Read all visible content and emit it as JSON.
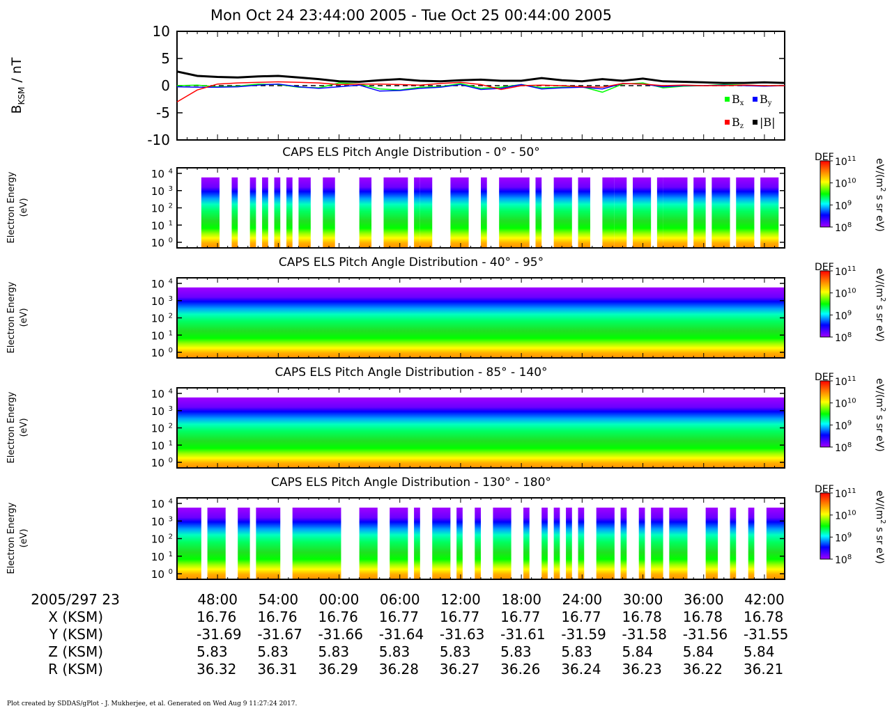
{
  "title": "Mon Oct 24 23:44:00 2005 - Tue Oct 25 00:44:00 2005",
  "footer": "Plot created by SDDAS/gPlot - J. Mukherjee, et al.  Generated on Wed Aug 9 11:27:24 2017.",
  "colors": {
    "bx": "#00ff00",
    "by": "#0000ff",
    "bz": "#ff0000",
    "bmag": "#000000",
    "colorbar_stops": [
      "#a000ff",
      "#0000ff",
      "#00ffff",
      "#00ff00",
      "#ffff00",
      "#ff8000",
      "#ff0000"
    ]
  },
  "colorbar": {
    "title": "DEF",
    "unit_main": "eV/(m",
    "unit_sup": "2",
    "unit_rest": " s sr eV)",
    "ticks": [
      {
        "base": "10",
        "exp": "11"
      },
      {
        "base": "10",
        "exp": "10"
      },
      {
        "base": "10",
        "exp": "9"
      },
      {
        "base": "10",
        "exp": "8"
      }
    ]
  },
  "chart_data": [
    {
      "type": "line",
      "ylabel_main": "B",
      "ylabel_sub": "KSM",
      "ylabel_rest": " / nT",
      "ylim": [
        -10,
        10
      ],
      "yticks": [
        "10",
        "5",
        "0",
        "-5",
        "-10"
      ],
      "legend": [
        {
          "key": "bx",
          "label": "B",
          "sub": "x"
        },
        {
          "key": "by",
          "label": "B",
          "sub": "y"
        },
        {
          "key": "bz",
          "label": "B",
          "sub": "z"
        },
        {
          "key": "bmag",
          "label": "|B|",
          "sub": ""
        }
      ],
      "legend_placement": "bottom-right",
      "x_minutes": [
        0,
        2,
        4,
        6,
        8,
        10,
        12,
        14,
        16,
        18,
        20,
        22,
        24,
        26,
        28,
        30,
        32,
        34,
        36,
        38,
        40,
        42,
        44,
        46,
        48,
        50,
        52,
        54,
        56,
        58,
        60
      ],
      "series": [
        {
          "key": "bx",
          "values": [
            0.0,
            0.1,
            -0.2,
            -0.1,
            0.3,
            0.2,
            -0.3,
            -0.4,
            0.5,
            0.3,
            -0.6,
            -0.8,
            -0.3,
            -0.2,
            0.4,
            -0.5,
            -0.3,
            0.2,
            -0.4,
            -0.3,
            -0.2,
            -1.2,
            0.3,
            0.5,
            -0.4,
            -0.1,
            0.0,
            0.2,
            0.1,
            0.0,
            0.0
          ]
        },
        {
          "key": "by",
          "values": [
            -0.2,
            -0.3,
            -0.3,
            -0.2,
            0.1,
            0.3,
            -0.2,
            -0.5,
            -0.2,
            0.1,
            -1.0,
            -0.9,
            -0.5,
            -0.3,
            0.2,
            -0.7,
            -0.5,
            0.2,
            -0.6,
            -0.4,
            -0.3,
            -0.6,
            0.4,
            0.3,
            -0.2,
            0.0,
            0.0,
            0.1,
            0.0,
            -0.1,
            0.0
          ]
        },
        {
          "key": "bz",
          "values": [
            -3.0,
            -0.8,
            0.3,
            0.5,
            0.6,
            0.7,
            0.6,
            0.5,
            0.2,
            0.3,
            0.3,
            0.2,
            0.1,
            0.4,
            0.6,
            0.2,
            -0.7,
            0.0,
            0.1,
            0.0,
            -0.2,
            -0.3,
            0.4,
            0.3,
            0.0,
            0.1,
            0.0,
            0.0,
            0.1,
            0.0,
            0.0
          ]
        },
        {
          "key": "bmag",
          "values": [
            2.6,
            1.8,
            1.6,
            1.5,
            1.7,
            1.8,
            1.5,
            1.2,
            0.8,
            0.7,
            1.0,
            1.2,
            0.9,
            0.8,
            1.0,
            1.1,
            0.9,
            0.9,
            1.4,
            1.0,
            0.8,
            1.2,
            0.9,
            1.3,
            0.8,
            0.7,
            0.6,
            0.5,
            0.5,
            0.6,
            0.5
          ]
        }
      ]
    },
    {
      "type": "heatmap",
      "title": "CAPS ELS Pitch Angle Distribution - 0° - 50°",
      "ylabel": "Electron Energy",
      "yunit": "(eV)",
      "yticks": [
        {
          "base": "10",
          "exp": "4"
        },
        {
          "base": "10",
          "exp": "3"
        },
        {
          "base": "10",
          "exp": "2"
        },
        {
          "base": "10",
          "exp": "1"
        },
        {
          "base": "10",
          "exp": "0"
        }
      ],
      "coverage": [
        [
          0.04,
          0.07
        ],
        [
          0.09,
          0.1
        ],
        [
          0.12,
          0.13
        ],
        [
          0.14,
          0.15
        ],
        [
          0.16,
          0.17
        ],
        [
          0.18,
          0.19
        ],
        [
          0.2,
          0.22
        ],
        [
          0.24,
          0.26
        ],
        [
          0.3,
          0.32
        ],
        [
          0.34,
          0.38
        ],
        [
          0.39,
          0.4
        ],
        [
          0.4,
          0.42
        ],
        [
          0.45,
          0.48
        ],
        [
          0.5,
          0.51
        ],
        [
          0.53,
          0.58
        ],
        [
          0.59,
          0.6
        ],
        [
          0.62,
          0.65
        ],
        [
          0.66,
          0.68
        ],
        [
          0.7,
          0.72
        ],
        [
          0.72,
          0.74
        ],
        [
          0.75,
          0.78
        ],
        [
          0.79,
          0.8
        ],
        [
          0.8,
          0.84
        ],
        [
          0.85,
          0.87
        ],
        [
          0.88,
          0.91
        ],
        [
          0.92,
          0.95
        ],
        [
          0.96,
          0.99
        ]
      ]
    },
    {
      "type": "heatmap",
      "title": "CAPS ELS Pitch Angle Distribution - 40° - 95°",
      "ylabel": "Electron Energy",
      "yunit": "(eV)",
      "yticks": [
        {
          "base": "10",
          "exp": "4"
        },
        {
          "base": "10",
          "exp": "3"
        },
        {
          "base": "10",
          "exp": "2"
        },
        {
          "base": "10",
          "exp": "1"
        },
        {
          "base": "10",
          "exp": "0"
        }
      ],
      "coverage": [
        [
          0.0,
          1.0
        ]
      ]
    },
    {
      "type": "heatmap",
      "title": "CAPS ELS Pitch Angle Distribution - 85° - 140°",
      "ylabel": "Electron Energy",
      "yunit": "(eV)",
      "yticks": [
        {
          "base": "10",
          "exp": "4"
        },
        {
          "base": "10",
          "exp": "3"
        },
        {
          "base": "10",
          "exp": "2"
        },
        {
          "base": "10",
          "exp": "1"
        },
        {
          "base": "10",
          "exp": "0"
        }
      ],
      "coverage": [
        [
          0.0,
          1.0
        ]
      ]
    },
    {
      "type": "heatmap",
      "title": "CAPS ELS Pitch Angle Distribution - 130° - 180°",
      "ylabel": "Electron Energy",
      "yunit": "(eV)",
      "yticks": [
        {
          "base": "10",
          "exp": "4"
        },
        {
          "base": "10",
          "exp": "3"
        },
        {
          "base": "10",
          "exp": "2"
        },
        {
          "base": "10",
          "exp": "1"
        },
        {
          "base": "10",
          "exp": "0"
        }
      ],
      "coverage": [
        [
          0.0,
          0.04
        ],
        [
          0.05,
          0.08
        ],
        [
          0.1,
          0.12
        ],
        [
          0.13,
          0.17
        ],
        [
          0.19,
          0.27
        ],
        [
          0.3,
          0.33
        ],
        [
          0.35,
          0.38
        ],
        [
          0.39,
          0.4
        ],
        [
          0.42,
          0.45
        ],
        [
          0.46,
          0.47
        ],
        [
          0.49,
          0.5
        ],
        [
          0.52,
          0.55
        ],
        [
          0.57,
          0.58
        ],
        [
          0.6,
          0.61
        ],
        [
          0.62,
          0.63
        ],
        [
          0.64,
          0.65
        ],
        [
          0.66,
          0.67
        ],
        [
          0.69,
          0.72
        ],
        [
          0.73,
          0.74
        ],
        [
          0.76,
          0.77
        ],
        [
          0.78,
          0.8
        ],
        [
          0.81,
          0.84
        ],
        [
          0.87,
          0.89
        ],
        [
          0.91,
          0.92
        ],
        [
          0.94,
          0.95
        ],
        [
          0.97,
          1.0
        ]
      ]
    }
  ],
  "time_axis": {
    "row_label": "2005/297 23",
    "ticks": [
      "48:00",
      "54:00",
      "00:00",
      "06:00",
      "12:00",
      "18:00",
      "24:00",
      "30:00",
      "36:00",
      "42:00"
    ],
    "tick_minutes": [
      4,
      10,
      16,
      22,
      28,
      34,
      40,
      46,
      52,
      58
    ],
    "span_minutes": 60
  },
  "ephemeris": [
    {
      "label": "X (KSM)",
      "values": [
        "16.76",
        "16.76",
        "16.76",
        "16.77",
        "16.77",
        "16.77",
        "16.77",
        "16.78",
        "16.78",
        "16.78"
      ]
    },
    {
      "label": "Y (KSM)",
      "values": [
        "-31.69",
        "-31.67",
        "-31.66",
        "-31.64",
        "-31.63",
        "-31.61",
        "-31.59",
        "-31.58",
        "-31.56",
        "-31.55"
      ]
    },
    {
      "label": "Z (KSM)",
      "values": [
        "5.83",
        "5.83",
        "5.83",
        "5.83",
        "5.83",
        "5.83",
        "5.83",
        "5.84",
        "5.84",
        "5.84"
      ]
    },
    {
      "label": "R (KSM)",
      "values": [
        "36.32",
        "36.31",
        "36.29",
        "36.28",
        "36.27",
        "36.26",
        "36.24",
        "36.23",
        "36.22",
        "36.21"
      ]
    }
  ]
}
